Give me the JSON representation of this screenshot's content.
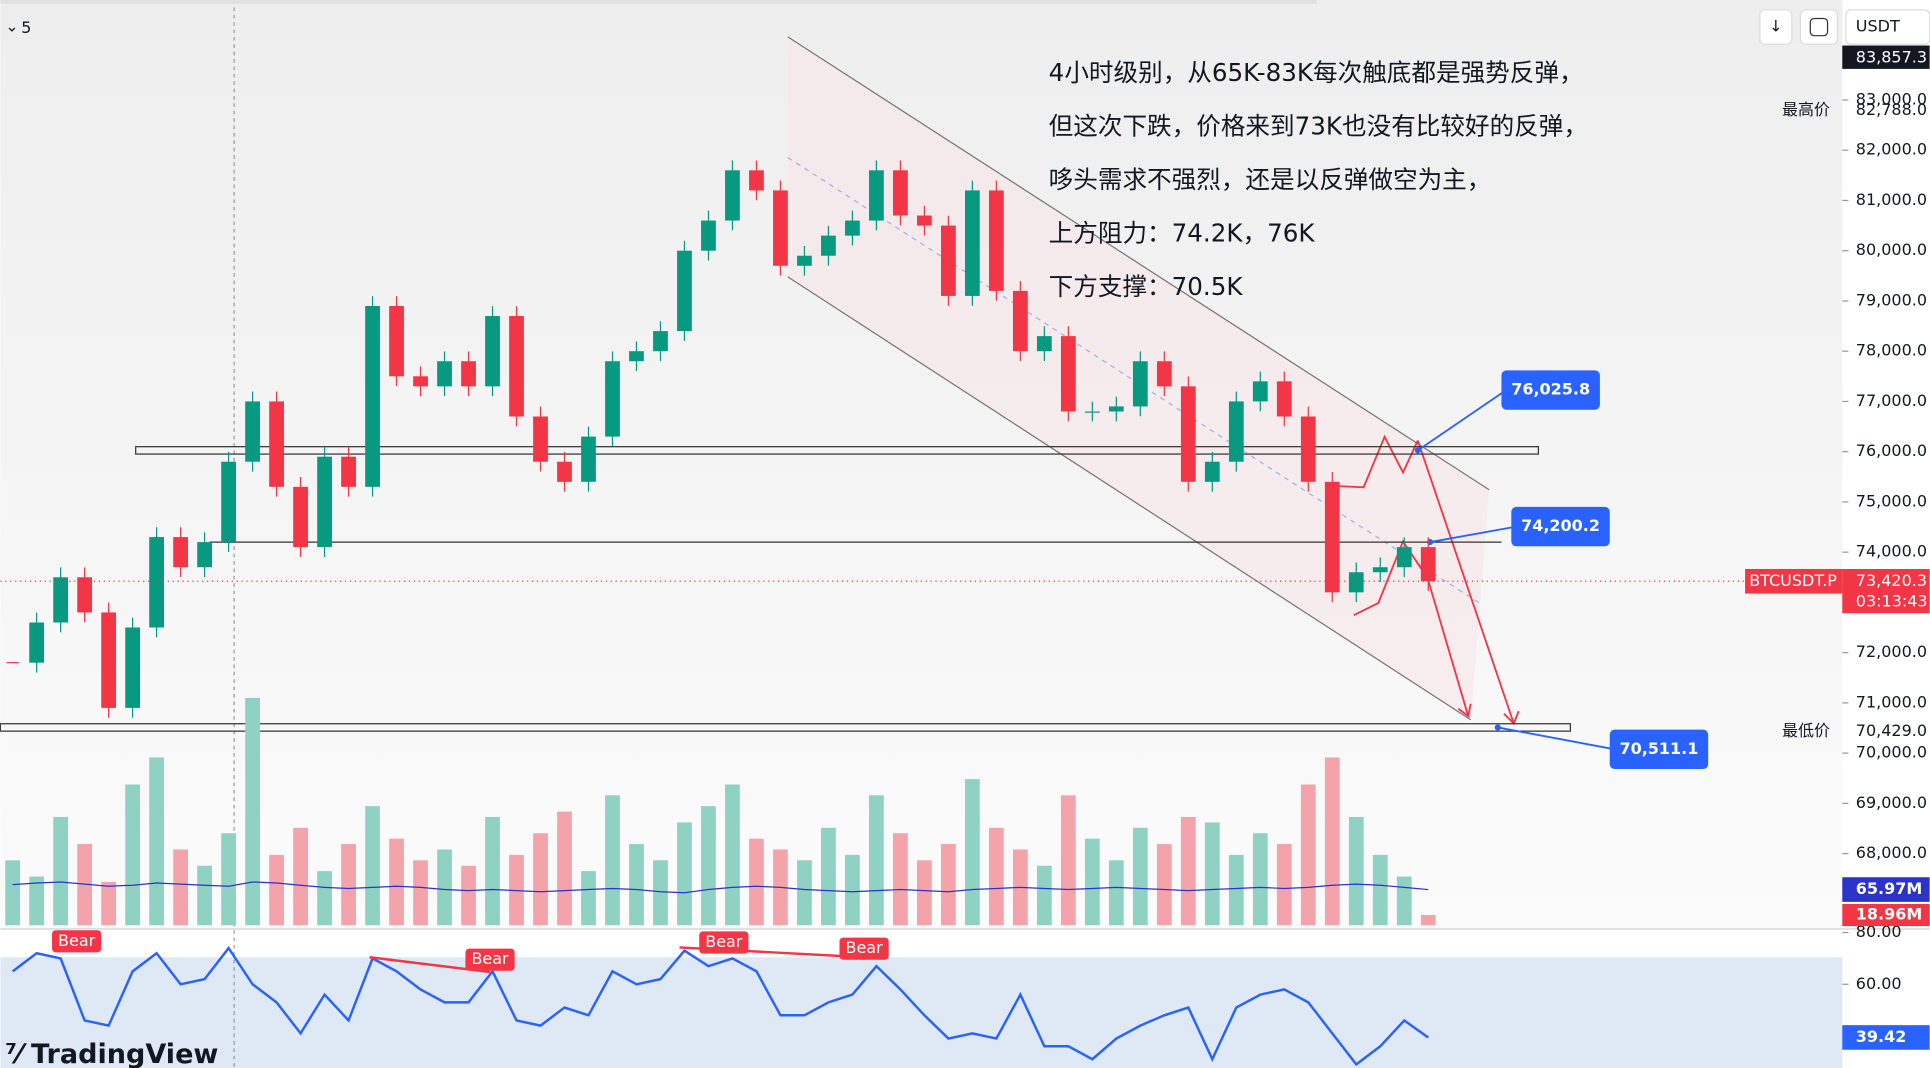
{
  "chart_data": [
    {
      "type": "candlestick",
      "interval": "5",
      "currency": "USDT",
      "symbol": "BTCUSDT.P",
      "countdown": "03:13:43",
      "last_label": "73,420.3",
      "top_label": "83,857.3",
      "annotation": [
        "4小时级别，从65K-83K每次触底都是强势反弹，",
        "但这次下跌，价格来到73K也没有比较好的反弹，",
        "哆头需求不强烈，还是以反弹做空为主，",
        "上方阻力：74.2K，76K",
        "下方支撑：70.5K"
      ],
      "high": {
        "name": "最高价",
        "value": 82788,
        "label": "82,788.0"
      },
      "low": {
        "name": "最低价",
        "value": 70429,
        "label": "70,429.0"
      },
      "levels": [
        {
          "value": 76025.8,
          "label": "76,025.8"
        },
        {
          "value": 74200.2,
          "label": "74,200.2"
        },
        {
          "value": 70511.1,
          "label": "70,511.1"
        }
      ],
      "values": [
        71800,
        72600,
        73500,
        72800,
        70900,
        72500,
        74300,
        73700,
        74200,
        75800,
        77000,
        75300,
        74100,
        75900,
        75300,
        78900,
        77500,
        77300,
        77800,
        77300,
        78700,
        76700,
        75800,
        75400,
        76300,
        77800,
        78000,
        78400,
        80000,
        80600,
        81600,
        81200,
        79700,
        79900,
        80300,
        80600,
        81600,
        80700,
        80500,
        79100,
        81200,
        79200,
        78000,
        78300,
        76800,
        76800,
        76900,
        77800,
        77300,
        75400,
        75800,
        77000,
        77400,
        76700,
        75400,
        73200,
        73600,
        73700,
        74100,
        73420.3
      ],
      "colors": {
        "up": "#089981",
        "down": "#f23645"
      },
      "ylim": [
        66500,
        84990
      ],
      "yticks": [
        {
          "value": 68000,
          "label": "68,000.0"
        },
        {
          "value": 69000,
          "label": "69,000.0"
        },
        {
          "value": 70000,
          "label": "70,000.0"
        },
        {
          "value": 71000,
          "label": "71,000.0"
        },
        {
          "value": 72000,
          "label": "72,000.0"
        },
        {
          "value": 73000,
          "label": "73,000.0"
        },
        {
          "value": 74000,
          "label": "74,000.0"
        },
        {
          "value": 75000,
          "label": "75,000.0"
        },
        {
          "value": 76000,
          "label": "76,000.0"
        },
        {
          "value": 77000,
          "label": "77,000.0"
        },
        {
          "value": 78000,
          "label": "78,000.0"
        },
        {
          "value": 79000,
          "label": "79,000.0"
        },
        {
          "value": 80000,
          "label": "80,000.0"
        },
        {
          "value": 81000,
          "label": "81,000.0"
        },
        {
          "value": 82000,
          "label": "82,000.0"
        },
        {
          "value": 83000,
          "label": "83,000.0"
        }
      ]
    },
    {
      "type": "bar",
      "values": [
        120,
        90,
        200,
        150,
        80,
        260,
        310,
        140,
        110,
        170,
        420,
        130,
        180,
        100,
        150,
        220,
        160,
        120,
        140,
        110,
        200,
        130,
        170,
        210,
        100,
        240,
        150,
        120,
        190,
        220,
        260,
        160,
        140,
        120,
        180,
        130,
        240,
        170,
        120,
        150,
        270,
        180,
        140,
        110,
        240,
        160,
        120,
        180,
        150,
        200,
        190,
        130,
        170,
        150,
        260,
        310,
        200,
        130,
        90,
        18.96
      ],
      "value_labels_last": "18.96M",
      "ma": [
        75,
        78,
        80,
        76,
        72,
        74,
        78,
        76,
        74,
        72,
        80,
        78,
        74,
        70,
        68,
        70,
        72,
        70,
        66,
        64,
        66,
        64,
        62,
        64,
        66,
        68,
        66,
        62,
        60,
        66,
        70,
        72,
        70,
        66,
        64,
        62,
        64,
        66,
        64,
        62,
        66,
        68,
        70,
        68,
        66,
        68,
        70,
        68,
        66,
        64,
        66,
        68,
        70,
        68,
        70,
        74,
        76,
        74,
        70,
        65.97
      ],
      "ma_label": "65.97M",
      "ma_color": "#2b34c8",
      "ylim": [
        0,
        450
      ]
    },
    {
      "type": "line",
      "values": [
        65,
        72,
        70,
        46,
        44,
        65,
        72,
        60,
        62,
        74,
        60,
        53,
        41,
        56,
        46,
        70,
        65,
        58,
        53,
        53,
        65,
        46,
        44,
        51,
        48,
        65,
        60,
        62,
        73,
        67,
        70,
        65,
        48,
        48,
        53,
        56,
        67,
        58,
        48,
        39,
        41,
        39,
        56,
        36,
        36,
        31,
        39,
        44,
        48,
        51,
        31,
        51,
        56,
        58,
        53,
        41,
        29,
        36,
        46,
        39.42
      ],
      "last_label": "39.42",
      "signals": [
        "Bear",
        "Bear",
        "Bear",
        "Bear"
      ],
      "color": "#2962ff",
      "ylim": [
        27.6,
        81.4
      ],
      "yticks": [
        {
          "value": 80,
          "label": "80.00"
        },
        {
          "value": 60,
          "label": "60.00"
        }
      ]
    }
  ]
}
